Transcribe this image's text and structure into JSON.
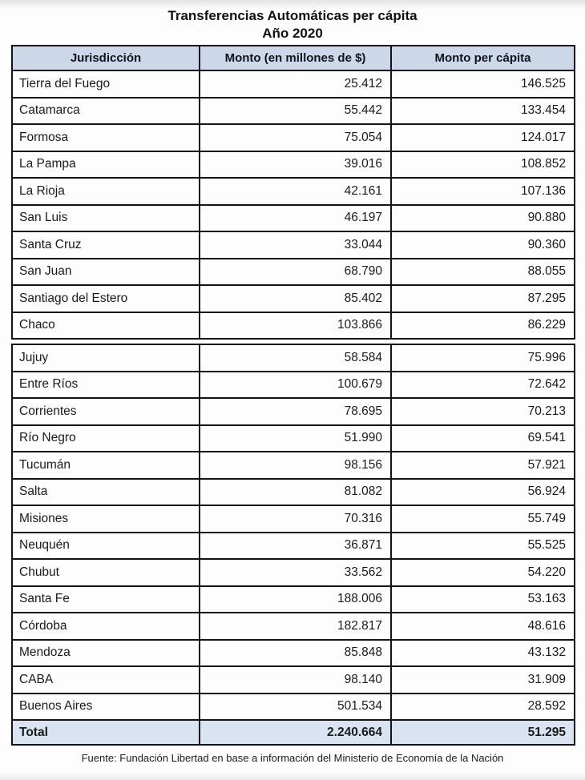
{
  "page": {
    "title_line1": "Transferencias Automáticas per cápita",
    "title_line2": "Año 2020",
    "source": "Fuente: Fundación Libertad en base a información del Ministerio de Economía de la Nación"
  },
  "colors": {
    "header_bg": "#ccd7ea",
    "total_bg": "#dae3f1",
    "border": "#141414",
    "page_bg": "#fdfdfd"
  },
  "table": {
    "headers": [
      "Jurisdicción",
      "Monto (en millones de $)",
      "Monto per cápita"
    ],
    "section1": [
      {
        "name": "Tierra del Fuego",
        "monto": "25.412",
        "per_capita": "146.525"
      },
      {
        "name": "Catamarca",
        "monto": "55.442",
        "per_capita": "133.454"
      },
      {
        "name": "Formosa",
        "monto": "75.054",
        "per_capita": "124.017"
      },
      {
        "name": "La Pampa",
        "monto": "39.016",
        "per_capita": "108.852"
      },
      {
        "name": "La Rioja",
        "monto": "42.161",
        "per_capita": "107.136"
      },
      {
        "name": "San Luis",
        "monto": "46.197",
        "per_capita": "90.880"
      },
      {
        "name": "Santa Cruz",
        "monto": "33.044",
        "per_capita": "90.360"
      },
      {
        "name": "San Juan",
        "monto": "68.790",
        "per_capita": "88.055"
      },
      {
        "name": "Santiago del Estero",
        "monto": "85.402",
        "per_capita": "87.295"
      },
      {
        "name": "Chaco",
        "monto": "103.866",
        "per_capita": "86.229"
      }
    ],
    "section2": [
      {
        "name": "Jujuy",
        "monto": "58.584",
        "per_capita": "75.996"
      },
      {
        "name": "Entre Ríos",
        "monto": "100.679",
        "per_capita": "72.642"
      },
      {
        "name": "Corrientes",
        "monto": "78.695",
        "per_capita": "70.213"
      },
      {
        "name": "Río Negro",
        "monto": "51.990",
        "per_capita": "69.541"
      },
      {
        "name": "Tucumán",
        "monto": "98.156",
        "per_capita": "57.921"
      },
      {
        "name": "Salta",
        "monto": "81.082",
        "per_capita": "56.924"
      },
      {
        "name": "Misiones",
        "monto": "70.316",
        "per_capita": "55.749"
      },
      {
        "name": "Neuquén",
        "monto": "36.871",
        "per_capita": "55.525"
      },
      {
        "name": "Chubut",
        "monto": "33.562",
        "per_capita": "54.220"
      },
      {
        "name": "Santa Fe",
        "monto": "188.006",
        "per_capita": "53.163"
      },
      {
        "name": "Córdoba",
        "monto": "182.817",
        "per_capita": "48.616"
      },
      {
        "name": "Mendoza",
        "monto": "85.848",
        "per_capita": "43.132"
      },
      {
        "name": "CABA",
        "monto": "98.140",
        "per_capita": "31.909"
      },
      {
        "name": "Buenos Aires",
        "monto": "501.534",
        "per_capita": "28.592"
      }
    ],
    "total": {
      "label": "Total",
      "monto": "2.240.664",
      "per_capita": "51.295"
    }
  },
  "chart_data": {
    "type": "table",
    "title": "Transferencias Automáticas per cápita",
    "subtitle": "Año 2020",
    "columns": [
      "Jurisdicción",
      "Monto (en millones de $)",
      "Monto per cápita"
    ],
    "number_format": "es-AR (punto como separador de miles)",
    "rows": [
      [
        "Tierra del Fuego",
        25412,
        146525
      ],
      [
        "Catamarca",
        55442,
        133454
      ],
      [
        "Formosa",
        75054,
        124017
      ],
      [
        "La Pampa",
        39016,
        108852
      ],
      [
        "La Rioja",
        42161,
        107136
      ],
      [
        "San Luis",
        46197,
        90880
      ],
      [
        "Santa Cruz",
        33044,
        90360
      ],
      [
        "San Juan",
        68790,
        88055
      ],
      [
        "Santiago del Estero",
        85402,
        87295
      ],
      [
        "Chaco",
        103866,
        86229
      ],
      [
        "Jujuy",
        58584,
        75996
      ],
      [
        "Entre Ríos",
        100679,
        72642
      ],
      [
        "Corrientes",
        78695,
        70213
      ],
      [
        "Río Negro",
        51990,
        69541
      ],
      [
        "Tucumán",
        98156,
        57921
      ],
      [
        "Salta",
        81082,
        56924
      ],
      [
        "Misiones",
        70316,
        55749
      ],
      [
        "Neuquén",
        36871,
        55525
      ],
      [
        "Chubut",
        33562,
        54220
      ],
      [
        "Santa Fe",
        188006,
        53163
      ],
      [
        "Córdoba",
        182817,
        48616
      ],
      [
        "Mendoza",
        85848,
        43132
      ],
      [
        "CABA",
        98140,
        31909
      ],
      [
        "Buenos Aires",
        501534,
        28592
      ]
    ],
    "total_row": [
      "Total",
      2240664,
      51295
    ],
    "source": "Fuente: Fundación Libertad en base a información del Ministerio de Economía de la Nación"
  }
}
